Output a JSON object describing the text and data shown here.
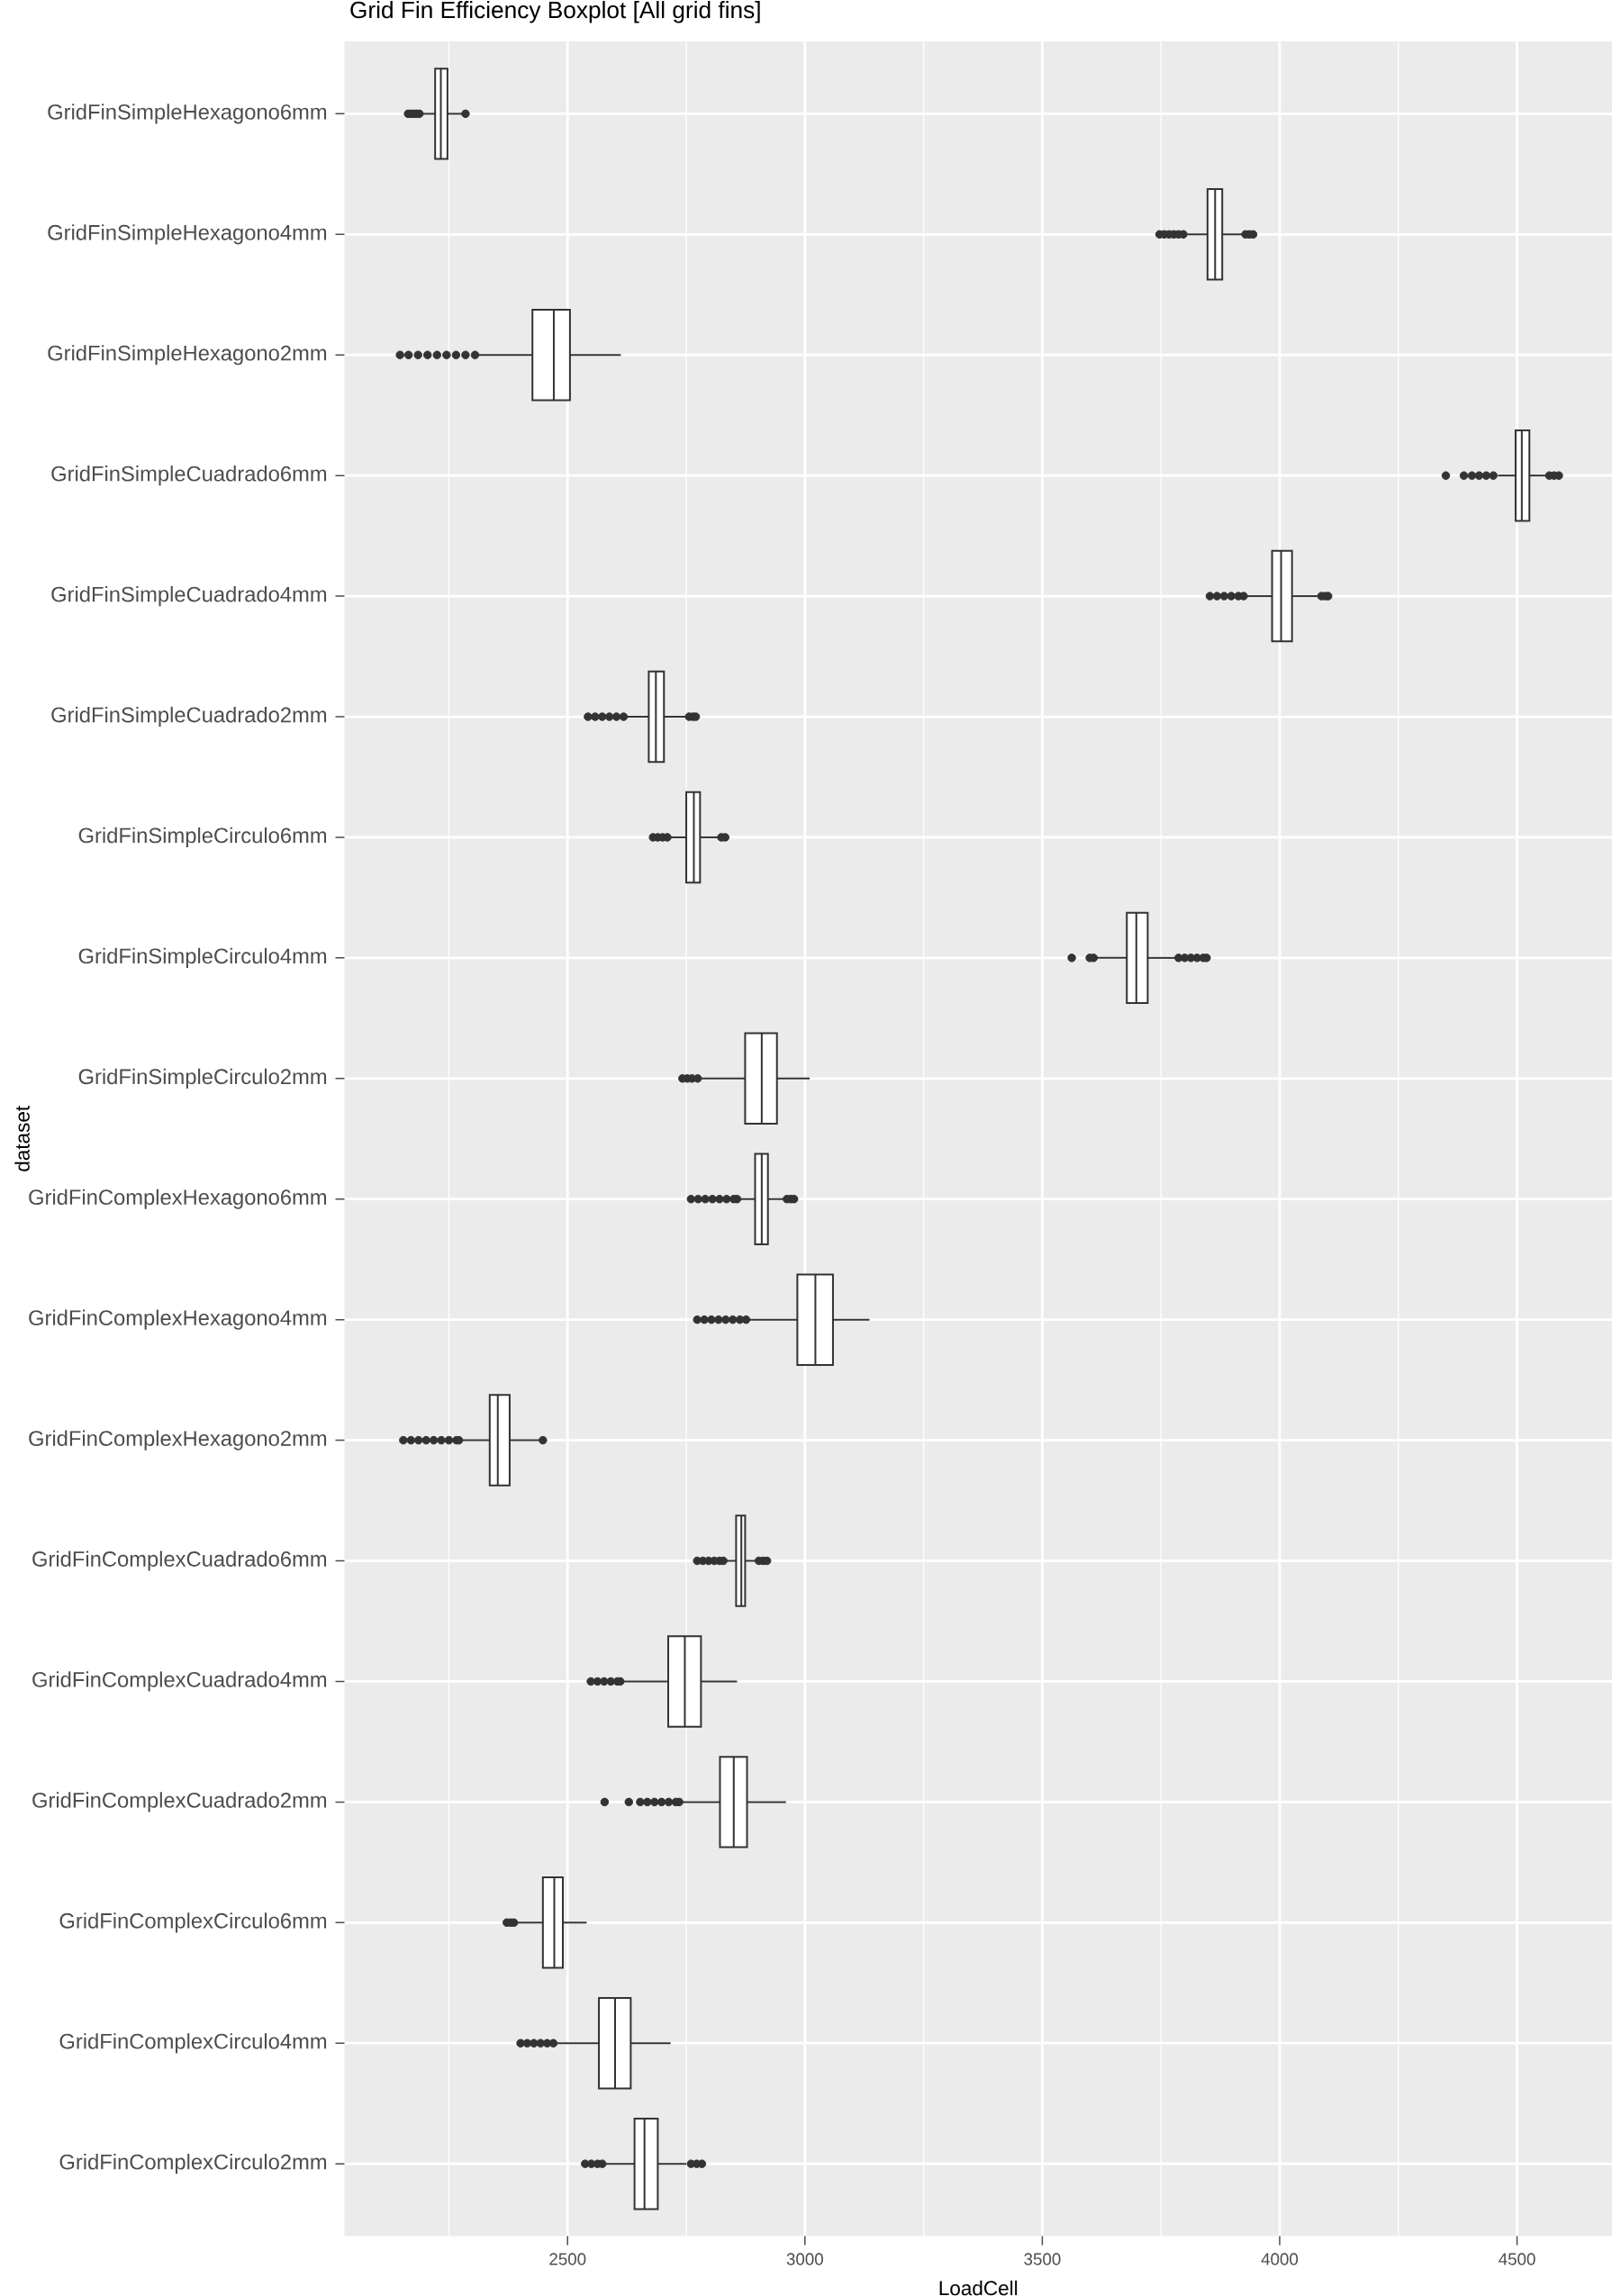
{
  "chart_data": {
    "type": "box",
    "orientation": "horizontal",
    "title": "Grid Fin Efficiency Boxplot [All grid fins]",
    "xlabel": "LoadCell",
    "ylabel": "dataset",
    "categories": [
      "GridFinSimpleHexagono6mm",
      "GridFinSimpleHexagono4mm",
      "GridFinSimpleHexagono2mm",
      "GridFinSimpleCuadrado6mm",
      "GridFinSimpleCuadrado4mm",
      "GridFinSimpleCuadrado2mm",
      "GridFinSimpleCirculo6mm",
      "GridFinSimpleCirculo4mm",
      "GridFinSimpleCirculo2mm",
      "GridFinComplexHexagono6mm",
      "GridFinComplexHexagono4mm",
      "GridFinComplexHexagono2mm",
      "GridFinComplexCuadrado6mm",
      "GridFinComplexCuadrado4mm",
      "GridFinComplexCuadrado2mm",
      "GridFinComplexCirculo6mm",
      "GridFinComplexCirculo4mm",
      "GridFinComplexCirculo2mm"
    ],
    "xlim": [
      2030,
      4700
    ],
    "xticks": [
      {
        "value": 2250,
        "label": null
      },
      2500,
      {
        "value": 2750,
        "label": null
      },
      3000,
      {
        "value": 3250,
        "label": null
      },
      3500,
      {
        "value": 3750,
        "label": null
      },
      4000,
      {
        "value": 4250,
        "label": null
      },
      4500
    ],
    "grid": true,
    "marker": "circle",
    "series": [
      {
        "color": "#333333",
        "boxes": [
          {
            "low": 2195,
            "q1": 2221,
            "median": 2233,
            "q3": 2247,
            "high": 2278,
            "outliers": [
              2164,
              2170,
              2176,
              2182,
              2188,
              2285
            ]
          },
          {
            "low": 3805,
            "q1": 3848,
            "median": 3864,
            "q3": 3879,
            "high": 3922,
            "outliers": [
              3747,
              3757,
              3767,
              3777,
              3787,
              3797,
              3928,
              3936,
              3944
            ]
          },
          {
            "low": 2312,
            "q1": 2426,
            "median": 2471,
            "q3": 2505,
            "high": 2612,
            "outliers": [
              2147,
              2165,
              2185,
              2205,
              2225,
              2245,
              2265,
              2285,
              2305
            ]
          },
          {
            "low": 4460,
            "q1": 4497,
            "median": 4510,
            "q3": 4526,
            "high": 4564,
            "outliers": [
              4350,
              4388,
              4405,
              4420,
              4435,
              4450,
              4568,
              4578,
              4588
            ]
          },
          {
            "low": 3930,
            "q1": 3984,
            "median": 4003,
            "q3": 4026,
            "high": 4081,
            "outliers": [
              3853,
              3868,
              3883,
              3898,
              3913,
              3924,
              4088,
              4096,
              4102
            ]
          },
          {
            "low": 2625,
            "q1": 2671,
            "median": 2686,
            "q3": 2703,
            "high": 2750,
            "outliers": [
              2543,
              2558,
              2573,
              2588,
              2603,
              2618,
              2756,
              2764,
              2770
            ]
          },
          {
            "low": 2715,
            "q1": 2750,
            "median": 2766,
            "q3": 2779,
            "high": 2819,
            "outliers": [
              2680,
              2690,
              2700,
              2710,
              2824,
              2832
            ]
          },
          {
            "low": 3615,
            "q1": 3678,
            "median": 3698,
            "q3": 3722,
            "high": 3781,
            "outliers": [
              3562,
              3600,
              3608,
              3787,
              3800,
              3813,
              3826,
              3839,
              3846
            ]
          },
          {
            "low": 2779,
            "q1": 2874,
            "median": 2909,
            "q3": 2941,
            "high": 3010,
            "outliers": [
              2742,
              2752,
              2762,
              2774
            ]
          },
          {
            "low": 2860,
            "q1": 2895,
            "median": 2909,
            "q3": 2922,
            "high": 2957,
            "outliers": [
              2760,
              2775,
              2790,
              2805,
              2820,
              2835,
              2850,
              2857,
              2962,
              2970,
              2977
            ]
          },
          {
            "low": 2880,
            "q1": 2984,
            "median": 3022,
            "q3": 3059,
            "high": 3136,
            "outliers": [
              2773,
              2788,
              2803,
              2818,
              2833,
              2848,
              2863,
              2876
            ]
          },
          {
            "low": 2275,
            "q1": 2336,
            "median": 2353,
            "q3": 2378,
            "high": 2440,
            "outliers": [
              2154,
              2170,
              2186,
              2202,
              2218,
              2234,
              2250,
              2266,
              2271,
              2448
            ]
          },
          {
            "low": 2832,
            "q1": 2855,
            "median": 2866,
            "q3": 2874,
            "high": 2897,
            "outliers": [
              2773,
              2785,
              2797,
              2809,
              2820,
              2828,
              2903,
              2912,
              2920
            ]
          },
          {
            "low": 2615,
            "q1": 2712,
            "median": 2747,
            "q3": 2781,
            "high": 2857,
            "outliers": [
              2549,
              2563,
              2577,
              2591,
              2605,
              2611
            ]
          },
          {
            "low": 2738,
            "q1": 2821,
            "median": 2850,
            "q3": 2878,
            "high": 2960,
            "outliers": [
              2578,
              2629,
              2653,
              2668,
              2683,
              2698,
              2713,
              2728,
              2735
            ]
          },
          {
            "low": 2390,
            "q1": 2448,
            "median": 2472,
            "q3": 2490,
            "high": 2540,
            "outliers": [
              2372,
              2380,
              2387
            ]
          },
          {
            "low": 2473,
            "q1": 2566,
            "median": 2600,
            "q3": 2633,
            "high": 2717,
            "outliers": [
              2401,
              2415,
              2429,
              2443,
              2457,
              2470
            ]
          },
          {
            "low": 2576,
            "q1": 2641,
            "median": 2662,
            "q3": 2690,
            "high": 2750,
            "outliers": [
              2537,
              2550,
              2563,
              2573,
              2760,
              2772,
              2783
            ]
          }
        ]
      }
    ]
  }
}
